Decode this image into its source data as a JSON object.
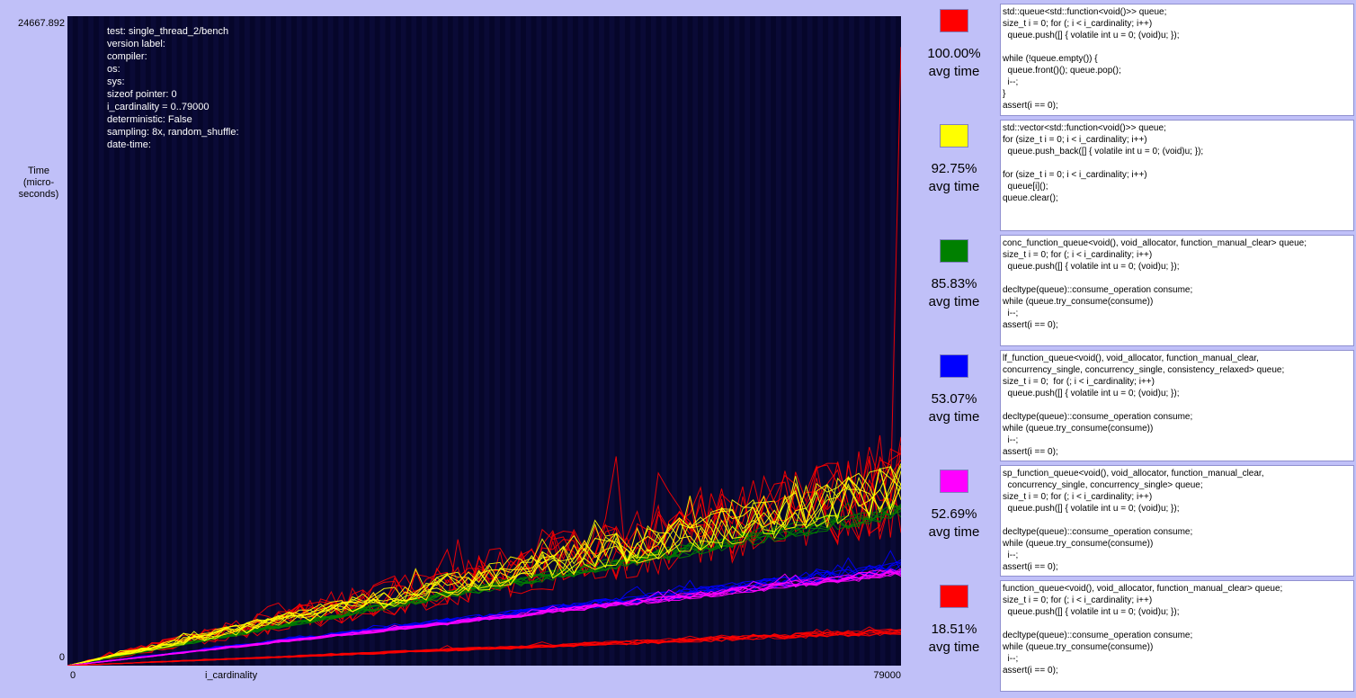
{
  "chart_data": {
    "type": "line",
    "title": "",
    "xlabel": "i_cardinality",
    "ylabel": "Time\n(micro-\nseconds)",
    "xlim": [
      0,
      79000
    ],
    "ylim": [
      0,
      24667.892
    ],
    "x_tick_labels": [
      "0",
      "79000"
    ],
    "y_tick_labels": [
      "24667.892",
      "0"
    ],
    "x_step": 1000,
    "grid": false,
    "legend": "right",
    "series": [
      {
        "color": "#ff0000",
        "relative_avg": 100.0,
        "end_value": 6800,
        "spike_value": 23500,
        "noise": 0.28,
        "runs": 8
      },
      {
        "color": "#ffff00",
        "relative_avg": 92.75,
        "end_value": 6700,
        "noise": 0.15,
        "runs": 8
      },
      {
        "color": "#008000",
        "relative_avg": 85.83,
        "end_value": 5900,
        "noise": 0.06,
        "runs": 8
      },
      {
        "color": "#0000ff",
        "relative_avg": 53.07,
        "end_value": 3700,
        "noise": 0.07,
        "runs": 8
      },
      {
        "color": "#ff00ff",
        "relative_avg": 52.69,
        "end_value": 3550,
        "noise": 0.05,
        "runs": 8
      },
      {
        "color": "#ff0000",
        "relative_avg": 18.51,
        "end_value": 1300,
        "noise": 0.1,
        "runs": 8
      }
    ]
  },
  "plot": {
    "y_max": "24667.892",
    "y_min": "0",
    "y_label": "Time\n(micro-\nseconds)",
    "x_min": "0",
    "x_max": "79000",
    "x_label": "i_cardinality"
  },
  "info": {
    "lines": [
      "test: single_thread_2/bench",
      "version label:",
      "compiler:",
      "os:",
      "sys:",
      "sizeof pointer: 0",
      "i_cardinality = 0..79000",
      "deterministic: False",
      "sampling: 8x, random_shuffle:",
      "date-time:"
    ]
  },
  "legend": [
    {
      "color": "#ff0000",
      "percent": "100.00%",
      "label": "avg time",
      "code": "std::queue<std::function<void()>> queue;\nsize_t i = 0; for (; i < i_cardinality; i++)\n  queue.push([] { volatile int u = 0; (void)u; });\n\nwhile (!queue.empty()) {\n  queue.front()(); queue.pop();\n  i--;\n}\nassert(i == 0);"
    },
    {
      "color": "#ffff00",
      "percent": "92.75%",
      "label": "avg time",
      "code": "std::vector<std::function<void()>> queue;\nfor (size_t i = 0; i < i_cardinality; i++)\n  queue.push_back([] { volatile int u = 0; (void)u; });\n\nfor (size_t i = 0; i < i_cardinality; i++)\n  queue[i]();\nqueue.clear();"
    },
    {
      "color": "#008000",
      "percent": "85.83%",
      "label": "avg time",
      "code": "conc_function_queue<void(), void_allocator, function_manual_clear> queue;\nsize_t i = 0; for (; i < i_cardinality; i++)\n  queue.push([] { volatile int u = 0; (void)u; });\n\ndecltype(queue)::consume_operation consume;\nwhile (queue.try_consume(consume))\n  i--;\nassert(i == 0);"
    },
    {
      "color": "#0000ff",
      "percent": "53.07%",
      "label": "avg time",
      "code": "lf_function_queue<void(), void_allocator, function_manual_clear,\nconcurrency_single, concurrency_single, consistency_relaxed> queue;\nsize_t i = 0;  for (; i < i_cardinality; i++)\n  queue.push([] { volatile int u = 0; (void)u; });\n\ndecltype(queue)::consume_operation consume;\nwhile (queue.try_consume(consume))\n  i--;\nassert(i == 0);"
    },
    {
      "color": "#ff00ff",
      "percent": "52.69%",
      "label": "avg time",
      "code": "sp_function_queue<void(), void_allocator, function_manual_clear,\n  concurrency_single, concurrency_single> queue;\nsize_t i = 0; for (; i < i_cardinality; i++)\n  queue.push([] { volatile int u = 0; (void)u; });\n\ndecltype(queue)::consume_operation consume;\nwhile (queue.try_consume(consume))\n  i--;\nassert(i == 0);"
    },
    {
      "color": "#ff0000",
      "percent": "18.51%",
      "label": "avg time",
      "code": "function_queue<void(), void_allocator, function_manual_clear> queue;\nsize_t i = 0; for (; i < i_cardinality; i++)\n  queue.push([] { volatile int u = 0; (void)u; });\n\ndecltype(queue)::consume_operation consume;\nwhile (queue.try_consume(consume))\n  i--;\nassert(i == 0);"
    }
  ]
}
